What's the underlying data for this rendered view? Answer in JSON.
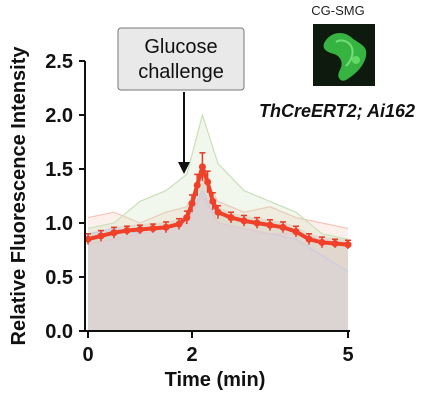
{
  "colors": {
    "mean_trace": "#f0402a",
    "error_bars": "#e83a25",
    "axis": "#111111",
    "background_fill": "#d9d9d4",
    "individual_traces": [
      "#f4c5b8",
      "#c9e0b8",
      "#c4cde6",
      "#e6c7cf",
      "#d8d8d8"
    ],
    "inset_background": "#0d1a0d",
    "inset_signal": "#3fcf4c"
  },
  "annotation": {
    "stimulus_line1": "Glucose",
    "stimulus_line2": "challenge"
  },
  "inset": {
    "label": "CG-SMG",
    "genotype": "ThCreERT2; Ai162"
  },
  "chart_data": {
    "type": "line",
    "xlabel": "Time (min)",
    "ylabel": "Relative Fluorescence Intensity",
    "xlim": [
      0,
      5
    ],
    "ylim": [
      0,
      2.5
    ],
    "x_ticks": [
      0,
      2,
      5
    ],
    "x_tick_labels": [
      "0",
      "2",
      "5"
    ],
    "y_ticks": [
      0,
      0.5,
      1.0,
      1.5,
      2.0,
      2.5
    ],
    "y_tick_labels": [
      "0.0",
      "0.5",
      "1.0",
      "1.5",
      "2.0",
      "2.5"
    ],
    "stimulus_time": 1.85,
    "mean_series": {
      "x": [
        0,
        0.25,
        0.5,
        0.75,
        1.0,
        1.25,
        1.5,
        1.75,
        1.9,
        2.0,
        2.1,
        2.2,
        2.3,
        2.4,
        2.5,
        2.75,
        3.0,
        3.25,
        3.5,
        3.75,
        4.0,
        4.25,
        4.5,
        4.75,
        5.0
      ],
      "y": [
        0.85,
        0.88,
        0.91,
        0.93,
        0.94,
        0.95,
        0.96,
        0.99,
        1.05,
        1.18,
        1.35,
        1.52,
        1.38,
        1.2,
        1.1,
        1.05,
        1.02,
        1.0,
        0.98,
        0.96,
        0.92,
        0.85,
        0.82,
        0.81,
        0.8
      ],
      "error": [
        0.05,
        0.05,
        0.05,
        0.04,
        0.04,
        0.04,
        0.05,
        0.05,
        0.06,
        0.08,
        0.1,
        0.13,
        0.1,
        0.08,
        0.06,
        0.05,
        0.05,
        0.05,
        0.05,
        0.05,
        0.05,
        0.05,
        0.05,
        0.04,
        0.04
      ]
    },
    "individual_traces": [
      {
        "x": [
          0,
          0.5,
          1.0,
          1.5,
          1.9,
          2.2,
          2.5,
          3.0,
          3.5,
          4.0,
          4.5,
          5.0
        ],
        "y": [
          1.05,
          1.1,
          1.0,
          1.1,
          1.15,
          1.45,
          1.2,
          1.1,
          1.15,
          1.05,
          1.0,
          0.95
        ]
      },
      {
        "x": [
          0,
          0.5,
          1.0,
          1.5,
          1.9,
          2.2,
          2.5,
          3.0,
          3.5,
          4.0,
          4.5,
          5.0
        ],
        "y": [
          0.95,
          1.0,
          1.2,
          1.3,
          1.45,
          2.0,
          1.55,
          1.3,
          1.2,
          1.1,
          0.9,
          0.85
        ]
      },
      {
        "x": [
          0,
          0.5,
          1.0,
          1.5,
          1.9,
          2.2,
          2.5,
          3.0,
          3.5,
          4.0,
          4.5,
          5.0
        ],
        "y": [
          0.9,
          0.95,
          0.9,
          0.95,
          1.0,
          1.3,
          1.0,
          0.95,
          0.9,
          0.85,
          0.7,
          0.55
        ]
      },
      {
        "x": [
          0,
          0.5,
          1.0,
          1.5,
          1.9,
          2.2,
          2.5,
          3.0,
          3.5,
          4.0,
          4.5,
          5.0
        ],
        "y": [
          0.8,
          0.85,
          0.9,
          0.95,
          1.0,
          1.25,
          1.0,
          0.95,
          0.9,
          0.9,
          0.85,
          0.8
        ]
      }
    ]
  }
}
